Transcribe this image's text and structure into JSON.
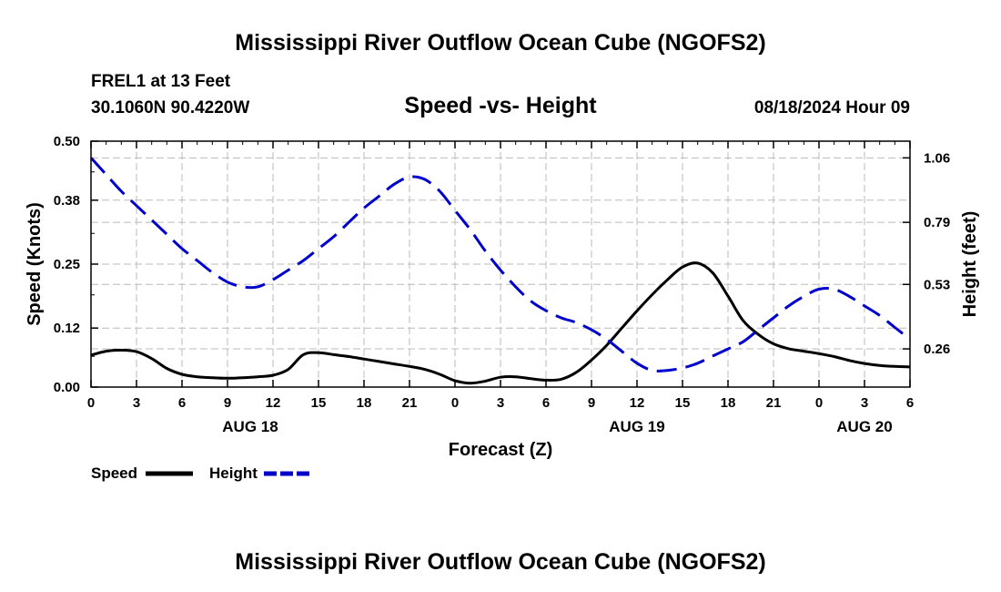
{
  "page": {
    "title": "Mississippi River Outflow Ocean Cube (NGOFS2)",
    "bottom_title": "Mississippi River Outflow Ocean Cube (NGOFS2)",
    "station_line": "FREL1 at 13 Feet",
    "coords_line": "30.1060N  90.4220W",
    "subtitle": "Speed -vs- Height",
    "datetime": "08/18/2024 Hour 09"
  },
  "colors": {
    "speed": "#000000",
    "height": "#0000cc",
    "grid": "#bbbbbb"
  },
  "chart_data": {
    "type": "line",
    "title": "Speed -vs- Height",
    "xlabel": "Forecast (Z)",
    "ylabel": "Speed (Knots)",
    "y2label": "Height (feet)",
    "x_range": [
      0,
      54
    ],
    "x_ticks": [
      0,
      3,
      6,
      9,
      12,
      15,
      18,
      21,
      24,
      27,
      30,
      33,
      36,
      39,
      42,
      45,
      48,
      51,
      54
    ],
    "x_tick_labels": [
      "0",
      "3",
      "6",
      "9",
      "12",
      "15",
      "18",
      "21",
      "0",
      "3",
      "6",
      "9",
      "12",
      "15",
      "18",
      "21",
      "0",
      "3",
      "6"
    ],
    "date_labels": [
      {
        "label": "AUG 18",
        "hour": 10.5
      },
      {
        "label": "AUG 19",
        "hour": 36
      },
      {
        "label": "AUG 20",
        "hour": 51
      }
    ],
    "y_left_range": [
      0,
      0.5
    ],
    "y_left_ticks": [
      0.0,
      0.12,
      0.25,
      0.38,
      0.5
    ],
    "y_left_tick_labels": [
      "0.00",
      "0.12",
      "0.25",
      "0.38",
      "0.50"
    ],
    "y_right_range": [
      0.1,
      1.13
    ],
    "y_right_ticks": [
      0.26,
      0.53,
      0.79,
      1.06
    ],
    "y_right_tick_labels": [
      "0.26",
      "0.53",
      "0.79",
      "1.06"
    ],
    "grid": true,
    "legend": {
      "placement": "bottom-left",
      "items": [
        {
          "label": "Speed",
          "style": "solid"
        },
        {
          "label": "Height",
          "style": "dashed"
        }
      ]
    },
    "series": [
      {
        "name": "Speed",
        "axis": "left",
        "x": [
          0,
          1,
          2,
          3,
          4,
          5,
          6,
          7,
          8,
          9,
          10,
          11,
          12,
          13,
          14,
          15,
          16,
          17,
          18,
          19,
          20,
          21,
          22,
          23,
          24,
          25,
          26,
          27,
          28,
          29,
          30,
          31,
          32,
          33,
          34,
          35,
          36,
          37,
          38,
          39,
          40,
          41,
          42,
          43,
          44,
          45,
          46,
          47,
          48,
          49,
          50,
          51,
          52,
          53,
          54
        ],
        "values": [
          0.065,
          0.073,
          0.075,
          0.072,
          0.058,
          0.038,
          0.026,
          0.021,
          0.019,
          0.018,
          0.019,
          0.021,
          0.024,
          0.036,
          0.066,
          0.07,
          0.066,
          0.062,
          0.057,
          0.052,
          0.047,
          0.042,
          0.036,
          0.026,
          0.013,
          0.008,
          0.012,
          0.02,
          0.021,
          0.017,
          0.014,
          0.016,
          0.03,
          0.055,
          0.085,
          0.12,
          0.155,
          0.188,
          0.218,
          0.244,
          0.252,
          0.232,
          0.185,
          0.135,
          0.107,
          0.088,
          0.078,
          0.073,
          0.068,
          0.062,
          0.054,
          0.048,
          0.044,
          0.042,
          0.041
        ]
      },
      {
        "name": "Height",
        "axis": "right",
        "x": [
          0,
          1,
          2,
          3,
          4,
          5,
          6,
          7,
          8,
          9,
          10,
          11,
          12,
          13,
          14,
          15,
          16,
          17,
          18,
          19,
          20,
          21,
          22,
          23,
          24,
          25,
          26,
          27,
          28,
          29,
          30,
          31,
          32,
          33,
          34,
          35,
          36,
          37,
          38,
          39,
          40,
          41,
          42,
          43,
          44,
          45,
          46,
          47,
          48,
          49,
          50,
          51,
          52,
          53,
          54
        ],
        "values": [
          1.06,
          0.99,
          0.92,
          0.86,
          0.8,
          0.74,
          0.68,
          0.63,
          0.58,
          0.54,
          0.52,
          0.52,
          0.55,
          0.59,
          0.63,
          0.68,
          0.73,
          0.79,
          0.85,
          0.9,
          0.95,
          0.98,
          0.97,
          0.92,
          0.84,
          0.76,
          0.67,
          0.59,
          0.52,
          0.46,
          0.42,
          0.39,
          0.37,
          0.34,
          0.3,
          0.25,
          0.2,
          0.17,
          0.17,
          0.18,
          0.2,
          0.23,
          0.26,
          0.29,
          0.34,
          0.39,
          0.44,
          0.48,
          0.51,
          0.51,
          0.48,
          0.44,
          0.4,
          0.35,
          0.3
        ]
      }
    ]
  }
}
